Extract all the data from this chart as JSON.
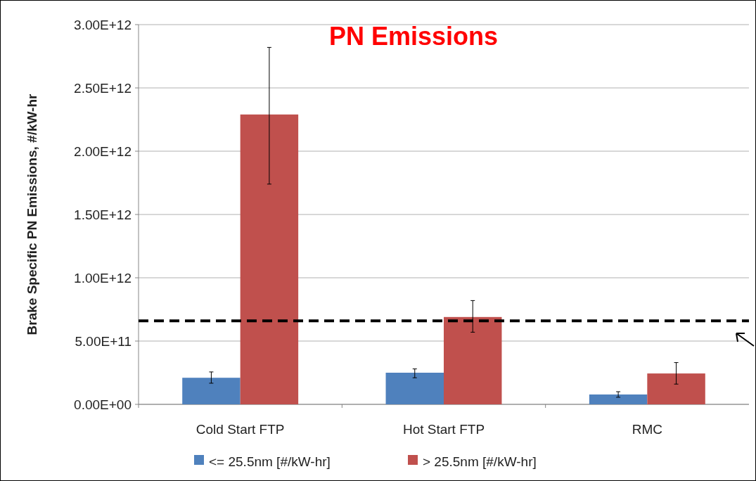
{
  "chart_data": {
    "type": "bar",
    "title": "PN Emissions",
    "ylabel": "Brake Specific PN Emissions, #/kW-hr",
    "categories": [
      "Cold Start FTP",
      "Hot Start FTP",
      "RMC"
    ],
    "series": [
      {
        "name": "<= 25.5nm [#/kW-hr]",
        "color": "#4f81bd",
        "values": [
          210000000000.0,
          250000000000.0,
          78000000000.0
        ],
        "errors": [
          [
            167000000000.0,
            256000000000.0
          ],
          [
            210000000000.0,
            280000000000.0
          ],
          [
            56000000000.0,
            100000000000.0
          ]
        ]
      },
      {
        "name": "> 25.5nm [#/kW-hr]",
        "color": "#c0504d",
        "values": [
          2290000000000.0,
          690000000000.0,
          244000000000.0
        ],
        "errors": [
          [
            1740000000000.0,
            2820000000000.0
          ],
          [
            570000000000.0,
            820000000000.0
          ],
          [
            160000000000.0,
            330000000000.0
          ]
        ]
      }
    ],
    "ylim": [
      0,
      3000000000000.0
    ],
    "yticks": [
      {
        "value": 0,
        "label": "0.00E+00"
      },
      {
        "value": 500000000000.0,
        "label": "5.00E+11"
      },
      {
        "value": 1000000000000.0,
        "label": "1.00E+12"
      },
      {
        "value": 1500000000000.0,
        "label": "1.50E+12"
      },
      {
        "value": 2000000000000.0,
        "label": "2.00E+12"
      },
      {
        "value": 2500000000000.0,
        "label": "2.50E+12"
      },
      {
        "value": 3000000000000.0,
        "label": "3.00E+12"
      }
    ],
    "grid": "y",
    "legend": "bottom",
    "ref_lines": [
      {
        "axis": "y",
        "value": 660000000000.0,
        "color": "#000000",
        "line_style": "dashed"
      }
    ]
  }
}
